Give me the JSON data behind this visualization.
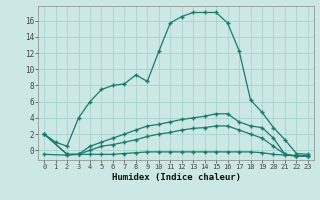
{
  "xlabel": "Humidex (Indice chaleur)",
  "bg_color": "#cce8e4",
  "grid_color": "#aad4cf",
  "line_color": "#1a7a6e",
  "xlim": [
    -0.5,
    23.5
  ],
  "ylim": [
    -1.2,
    17.8
  ],
  "xticks": [
    0,
    1,
    2,
    3,
    4,
    5,
    6,
    7,
    8,
    9,
    10,
    11,
    12,
    13,
    14,
    15,
    16,
    17,
    18,
    19,
    20,
    21,
    22,
    23
  ],
  "yticks": [
    0,
    2,
    4,
    6,
    8,
    10,
    12,
    14,
    16
  ],
  "ytick_labels": [
    "0",
    "2",
    "4",
    "6",
    "8",
    "10",
    "12",
    "14",
    "16"
  ],
  "series": [
    {
      "x": [
        0,
        1,
        2,
        3,
        4,
        5,
        6,
        7,
        8,
        9,
        10,
        11,
        12,
        13,
        14,
        15,
        16,
        17,
        18,
        19,
        20,
        21,
        22,
        23
      ],
      "y": [
        2,
        1,
        0.5,
        4,
        6,
        7.5,
        8,
        8.2,
        9.3,
        8.5,
        12.2,
        15.7,
        16.5,
        17.0,
        17.0,
        17.0,
        15.7,
        12.3,
        6.2,
        4.7,
        2.8,
        1.3,
        -0.4,
        -0.5
      ]
    },
    {
      "x": [
        0,
        2,
        3,
        4,
        5,
        6,
        7,
        8,
        9,
        10,
        11,
        12,
        13,
        14,
        15,
        16,
        17,
        18,
        19,
        20,
        21,
        22,
        23
      ],
      "y": [
        2,
        -0.5,
        -0.5,
        0.5,
        1.0,
        1.5,
        2.0,
        2.5,
        3.0,
        3.2,
        3.5,
        3.8,
        4.0,
        4.2,
        4.5,
        4.5,
        3.5,
        3.0,
        2.8,
        1.5,
        -0.5,
        -0.7,
        -0.7
      ]
    },
    {
      "x": [
        0,
        2,
        3,
        4,
        5,
        6,
        7,
        8,
        9,
        10,
        11,
        12,
        13,
        14,
        15,
        16,
        17,
        18,
        19,
        20,
        21,
        22,
        23
      ],
      "y": [
        2,
        -0.5,
        -0.5,
        0.0,
        0.5,
        0.7,
        1.0,
        1.3,
        1.7,
        2.0,
        2.2,
        2.5,
        2.7,
        2.8,
        3.0,
        3.0,
        2.5,
        2.0,
        1.5,
        0.5,
        -0.5,
        -0.7,
        -0.7
      ]
    },
    {
      "x": [
        0,
        2,
        3,
        4,
        5,
        6,
        7,
        8,
        9,
        10,
        11,
        12,
        13,
        14,
        15,
        16,
        17,
        18,
        19,
        20,
        21,
        22,
        23
      ],
      "y": [
        -0.5,
        -0.6,
        -0.5,
        -0.5,
        -0.5,
        -0.5,
        -0.4,
        -0.3,
        -0.2,
        -0.2,
        -0.2,
        -0.2,
        -0.2,
        -0.2,
        -0.2,
        -0.2,
        -0.2,
        -0.2,
        -0.3,
        -0.5,
        -0.6,
        -0.7,
        -0.7
      ]
    }
  ]
}
